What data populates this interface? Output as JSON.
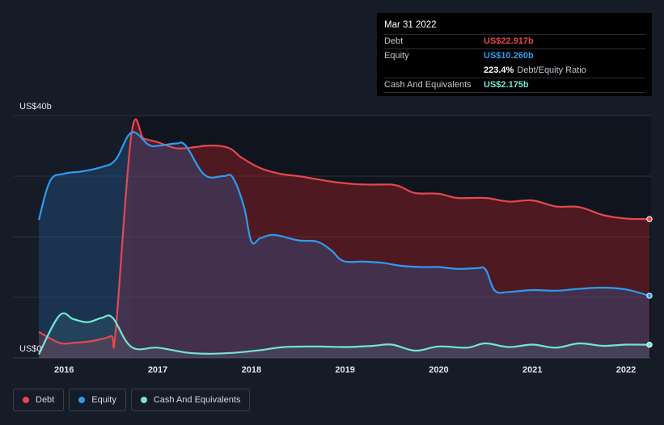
{
  "tooltip": {
    "date": "Mar 31 2022",
    "rows": [
      {
        "label": "Debt",
        "value": "US$22.917b",
        "color": "#e5484d"
      },
      {
        "label": "Equity",
        "value": "US$10.260b",
        "color": "#2d9cf0"
      },
      {
        "ratio_value": "223.4%",
        "ratio_label": "Debt/Equity Ratio"
      },
      {
        "label": "Cash And Equivalents",
        "value": "US$2.175b",
        "color": "#73e6cf"
      }
    ]
  },
  "legend": [
    {
      "label": "Debt",
      "color": "#e5484d"
    },
    {
      "label": "Equity",
      "color": "#2d9cf0"
    },
    {
      "label": "Cash And Equivalents",
      "color": "#73e6cf"
    }
  ],
  "chart_data": {
    "type": "area",
    "y_axis_labels": [
      "US$40b",
      "US$0"
    ],
    "ylim": [
      0,
      40
    ],
    "xlim": [
      2015.73,
      2022.25
    ],
    "x_ticks": [
      2016,
      2017,
      2018,
      2019,
      2020,
      2021,
      2022
    ],
    "x_tick_labels": [
      "2016",
      "2017",
      "2018",
      "2019",
      "2020",
      "2021",
      "2022"
    ],
    "grid": true,
    "series": [
      {
        "name": "Debt",
        "color": "#e5484d",
        "points": [
          [
            2015.73,
            4.3
          ],
          [
            2015.95,
            2.5
          ],
          [
            2016.1,
            2.5
          ],
          [
            2016.3,
            2.8
          ],
          [
            2016.5,
            3.6
          ],
          [
            2016.55,
            4.5
          ],
          [
            2016.72,
            37
          ],
          [
            2016.85,
            36.2
          ],
          [
            2017.0,
            35.6
          ],
          [
            2017.2,
            34.6
          ],
          [
            2017.4,
            34.8
          ],
          [
            2017.5,
            35.0
          ],
          [
            2017.65,
            35.0
          ],
          [
            2017.78,
            34.5
          ],
          [
            2017.9,
            33.0
          ],
          [
            2018.1,
            31.3
          ],
          [
            2018.3,
            30.4
          ],
          [
            2018.5,
            30.0
          ],
          [
            2018.7,
            29.5
          ],
          [
            2018.9,
            29.0
          ],
          [
            2019.1,
            28.7
          ],
          [
            2019.3,
            28.6
          ],
          [
            2019.5,
            28.6
          ],
          [
            2019.6,
            28.2
          ],
          [
            2019.75,
            27.2
          ],
          [
            2020.0,
            27.1
          ],
          [
            2020.2,
            26.4
          ],
          [
            2020.5,
            26.4
          ],
          [
            2020.75,
            25.8
          ],
          [
            2021.0,
            26.0
          ],
          [
            2021.25,
            25.0
          ],
          [
            2021.5,
            24.9
          ],
          [
            2021.75,
            23.6
          ],
          [
            2022.0,
            23.0
          ],
          [
            2022.25,
            22.917
          ]
        ]
      },
      {
        "name": "Equity",
        "color": "#2d9cf0",
        "points": [
          [
            2015.73,
            22.8
          ],
          [
            2015.85,
            29.2
          ],
          [
            2016.0,
            30.4
          ],
          [
            2016.2,
            30.8
          ],
          [
            2016.4,
            31.5
          ],
          [
            2016.55,
            32.7
          ],
          [
            2016.72,
            37.2
          ],
          [
            2016.9,
            35.2
          ],
          [
            2017.0,
            35.0
          ],
          [
            2017.2,
            35.4
          ],
          [
            2017.3,
            35.0
          ],
          [
            2017.5,
            30.2
          ],
          [
            2017.7,
            30.0
          ],
          [
            2017.8,
            29.8
          ],
          [
            2017.92,
            25.0
          ],
          [
            2018.0,
            19.2
          ],
          [
            2018.1,
            19.8
          ],
          [
            2018.25,
            20.3
          ],
          [
            2018.5,
            19.4
          ],
          [
            2018.7,
            19.2
          ],
          [
            2018.85,
            17.8
          ],
          [
            2018.98,
            16.0
          ],
          [
            2019.2,
            15.9
          ],
          [
            2019.4,
            15.7
          ],
          [
            2019.6,
            15.2
          ],
          [
            2019.8,
            15.0
          ],
          [
            2020.0,
            15.0
          ],
          [
            2020.2,
            14.7
          ],
          [
            2020.4,
            14.8
          ],
          [
            2020.5,
            14.6
          ],
          [
            2020.6,
            11.1
          ],
          [
            2020.75,
            10.9
          ],
          [
            2021.0,
            11.2
          ],
          [
            2021.25,
            11.1
          ],
          [
            2021.5,
            11.4
          ],
          [
            2021.75,
            11.6
          ],
          [
            2022.0,
            11.3
          ],
          [
            2022.25,
            10.26
          ]
        ]
      },
      {
        "name": "Cash And Equivalents",
        "color": "#73e6cf",
        "points": [
          [
            2015.73,
            0.6
          ],
          [
            2015.95,
            7.0
          ],
          [
            2016.1,
            6.4
          ],
          [
            2016.25,
            5.9
          ],
          [
            2016.4,
            6.6
          ],
          [
            2016.52,
            6.6
          ],
          [
            2016.72,
            1.8
          ],
          [
            2017.0,
            1.7
          ],
          [
            2017.3,
            0.9
          ],
          [
            2017.55,
            0.7
          ],
          [
            2017.85,
            0.9
          ],
          [
            2018.1,
            1.3
          ],
          [
            2018.35,
            1.8
          ],
          [
            2018.7,
            1.9
          ],
          [
            2019.0,
            1.8
          ],
          [
            2019.3,
            2.0
          ],
          [
            2019.5,
            2.2
          ],
          [
            2019.75,
            1.2
          ],
          [
            2020.0,
            1.9
          ],
          [
            2020.3,
            1.7
          ],
          [
            2020.5,
            2.4
          ],
          [
            2020.75,
            1.8
          ],
          [
            2021.0,
            2.2
          ],
          [
            2021.25,
            1.7
          ],
          [
            2021.5,
            2.4
          ],
          [
            2021.75,
            2.0
          ],
          [
            2022.0,
            2.2
          ],
          [
            2022.25,
            2.175
          ]
        ]
      }
    ]
  }
}
